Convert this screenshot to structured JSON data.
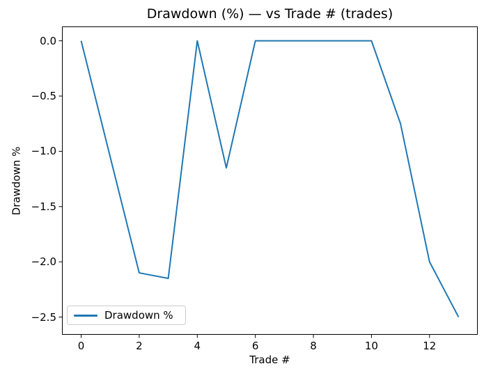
{
  "chart_data": {
    "type": "line",
    "title": "Drawdown (%) — vs Trade # (trades)",
    "xlabel": "Trade #",
    "ylabel": "Drawdown %",
    "x": [
      0,
      1,
      2,
      3,
      4,
      5,
      6,
      7,
      8,
      9,
      10,
      11,
      12,
      13
    ],
    "series": [
      {
        "name": "Drawdown %",
        "color": "#1f77b4",
        "values": [
          0,
          -1.05,
          -2.1,
          -2.15,
          0,
          -1.15,
          0,
          0,
          0,
          0,
          0,
          -0.75,
          -2.0,
          -2.5
        ]
      }
    ],
    "xticks": [
      0,
      2,
      4,
      6,
      8,
      10,
      12
    ],
    "xtick_labels": [
      "0",
      "2",
      "4",
      "6",
      "8",
      "10",
      "12"
    ],
    "yticks": [
      0,
      -0.5,
      -1.0,
      -1.5,
      -2.0,
      -2.5
    ],
    "ytick_labels": [
      "0.0",
      "−0.5",
      "−1.0",
      "−1.5",
      "−2.0",
      "−2.5"
    ],
    "xlim": [
      -0.66,
      13.66
    ],
    "ylim": [
      -2.66,
      0.13
    ],
    "grid": false,
    "legend": {
      "entries": [
        "Drawdown %"
      ],
      "position": "lower left"
    },
    "colors": {
      "line": "#1f77b4",
      "axis": "#000000",
      "legend_border": "#cccccc",
      "background": "#ffffff"
    }
  }
}
